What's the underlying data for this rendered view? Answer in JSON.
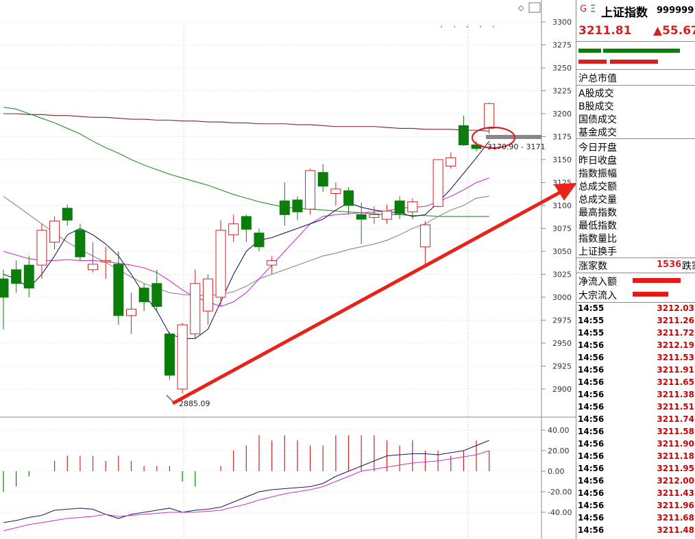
{
  "chart_data": [
    {
      "type": "candlestick",
      "y_ticks": [
        "3300",
        "3275",
        "3250",
        "3225",
        "3200",
        "3175",
        "3150",
        "3125",
        "3100",
        "3075",
        "3050",
        "3025",
        "3000",
        "2975",
        "2950",
        "2925",
        "2900"
      ],
      "ylim": [
        2885,
        3305
      ],
      "annotations": {
        "low_label": "2885.09",
        "range_label": "3170.90 - 3171",
        "max_marker": ". . . . ."
      },
      "candles": [
        {
          "o": 3020,
          "c": 3000,
          "h": 3030,
          "l": 2965
        },
        {
          "o": 3030,
          "c": 3015,
          "h": 3040,
          "l": 3005
        },
        {
          "o": 3035,
          "c": 3010,
          "h": 3045,
          "l": 3000
        },
        {
          "o": 3035,
          "c": 3073,
          "h": 3080,
          "l": 3020
        },
        {
          "o": 3060,
          "c": 3083,
          "h": 3088,
          "l": 3052
        },
        {
          "o": 3097,
          "c": 3084,
          "h": 3101,
          "l": 3078
        },
        {
          "o": 3073,
          "c": 3044,
          "h": 3080,
          "l": 3040
        },
        {
          "o": 3030,
          "c": 3036,
          "h": 3060,
          "l": 3027
        },
        {
          "o": 3040,
          "c": 3040,
          "h": 3055,
          "l": 3020
        },
        {
          "o": 3036,
          "c": 2980,
          "h": 3050,
          "l": 2970
        },
        {
          "o": 2980,
          "c": 2987,
          "h": 3005,
          "l": 2960
        },
        {
          "o": 3010,
          "c": 2995,
          "h": 3015,
          "l": 2985
        },
        {
          "o": 3015,
          "c": 2990,
          "h": 3030,
          "l": 2985
        },
        {
          "o": 2960,
          "c": 2915,
          "h": 2962,
          "l": 2910
        },
        {
          "o": 2900,
          "c": 2970,
          "h": 2972,
          "l": 2895
        },
        {
          "o": 2960,
          "c": 3015,
          "h": 3030,
          "l": 2955
        },
        {
          "o": 2985,
          "c": 3020,
          "h": 3025,
          "l": 2970
        },
        {
          "o": 3000,
          "c": 3073,
          "h": 3084,
          "l": 2990
        },
        {
          "o": 3068,
          "c": 3080,
          "h": 3090,
          "l": 3060
        },
        {
          "o": 3088,
          "c": 3074,
          "h": 3090,
          "l": 3060
        },
        {
          "o": 3070,
          "c": 3055,
          "h": 3075,
          "l": 3050
        },
        {
          "o": 3035,
          "c": 3040,
          "h": 3045,
          "l": 3025
        },
        {
          "o": 3105,
          "c": 3090,
          "h": 3125,
          "l": 3078
        },
        {
          "o": 3106,
          "c": 3093,
          "h": 3110,
          "l": 3084
        },
        {
          "o": 3096,
          "c": 3138,
          "h": 3140,
          "l": 3090
        },
        {
          "o": 3136,
          "c": 3121,
          "h": 3145,
          "l": 3115
        },
        {
          "o": 3113,
          "c": 3118,
          "h": 3125,
          "l": 3100
        },
        {
          "o": 3116,
          "c": 3100,
          "h": 3120,
          "l": 3090
        },
        {
          "o": 3090,
          "c": 3085,
          "h": 3103,
          "l": 3058
        },
        {
          "o": 3087,
          "c": 3090,
          "h": 3099,
          "l": 3080
        },
        {
          "o": 3085,
          "c": 3094,
          "h": 3101,
          "l": 3080
        },
        {
          "o": 3105,
          "c": 3091,
          "h": 3110,
          "l": 3085
        },
        {
          "o": 3093,
          "c": 3104,
          "h": 3108,
          "l": 3085
        },
        {
          "o": 3055,
          "c": 3079,
          "h": 3083,
          "l": 3035
        },
        {
          "o": 3099,
          "c": 3150,
          "h": 3150,
          "l": 3098
        },
        {
          "o": 3143,
          "c": 3152,
          "h": 3158,
          "l": 3140
        },
        {
          "o": 3187,
          "c": 3166,
          "h": 3198,
          "l": 3165
        },
        {
          "o": 3166,
          "c": 3162,
          "h": 3170,
          "l": 3159
        },
        {
          "o": 3184,
          "c": 3211,
          "h": 3212,
          "l": 3178
        }
      ],
      "ma_green": [
        3207,
        3205,
        3200,
        3195,
        3190,
        3184,
        3178,
        3170,
        3163,
        3157,
        3150,
        3144,
        3139,
        3134,
        3130,
        3126,
        3122,
        3117,
        3112,
        3108,
        3104,
        3101,
        3098,
        3097,
        3096,
        3095,
        3094,
        3093,
        3092,
        3091,
        3090,
        3090,
        3089,
        3089,
        3088,
        3088,
        3088,
        3088,
        3088
      ],
      "ma_darkred": [
        3200,
        3200,
        3199,
        3199,
        3198,
        3198,
        3197,
        3196,
        3196,
        3195,
        3194,
        3194,
        3193,
        3193,
        3192,
        3192,
        3191,
        3191,
        3190,
        3190,
        3189,
        3189,
        3189,
        3188,
        3188,
        3187,
        3186,
        3186,
        3186,
        3186,
        3185,
        3184,
        3184,
        3183,
        3183,
        3183,
        3182,
        3182,
        3181
      ],
      "ma_gray": [
        3110,
        3100,
        3090,
        3080,
        3070,
        3060,
        3052,
        3045,
        3038,
        3030,
        3022,
        3015,
        3010,
        3005,
        3003,
        3002,
        3002,
        3003,
        3006,
        3012,
        3020,
        3025,
        3030,
        3035,
        3040,
        3045,
        3048,
        3052,
        3055,
        3058,
        3062,
        3068,
        3075,
        3080,
        3088,
        3095,
        3100,
        3108,
        3110
      ],
      "ma_magenta": [
        3050,
        3046,
        3042,
        3040,
        3040,
        3041,
        3040,
        3040,
        3039,
        3037,
        3035,
        3032,
        3027,
        3018,
        3008,
        3000,
        2995,
        2990,
        2995,
        3005,
        3020,
        3035,
        3050,
        3065,
        3080,
        3088,
        3090,
        3091,
        3092,
        3093,
        3094,
        3097,
        3098,
        3099,
        3104,
        3110,
        3117,
        3125,
        3130
      ],
      "ma_navy": [
        3025,
        3020,
        3010,
        3025,
        3045,
        3068,
        3075,
        3068,
        3058,
        3045,
        3025,
        3003,
        2985,
        2960,
        2955,
        2955,
        2965,
        2995,
        3025,
        3050,
        3062,
        3065,
        3070,
        3075,
        3080,
        3085,
        3095,
        3103,
        3098,
        3095,
        3093,
        3092,
        3088,
        3090,
        3103,
        3118,
        3135,
        3152,
        3170
      ]
    },
    {
      "type": "bar",
      "y_ticks": [
        "40.00",
        "20.00",
        "0.00",
        "-20.00",
        "-40.00"
      ],
      "ylim": [
        -55,
        45
      ],
      "bars": [
        -20,
        -15,
        -5,
        0,
        10,
        15,
        15,
        15,
        10,
        15,
        10,
        5,
        5,
        5,
        -10,
        -15,
        0,
        5,
        20,
        25,
        35,
        30,
        35,
        30,
        25,
        25,
        35,
        35,
        35,
        35,
        30,
        25,
        30,
        20,
        20,
        15,
        20,
        30,
        20
      ],
      "line_navy": [
        -50,
        -48,
        -45,
        -43,
        -38,
        -37,
        -36,
        -37,
        -42,
        -46,
        -42,
        -40,
        -38,
        -36,
        -40,
        -38,
        -37,
        -35,
        -30,
        -25,
        -20,
        -18,
        -17,
        -16,
        -15,
        -12,
        -5,
        0,
        5,
        10,
        15,
        16,
        17,
        17,
        16,
        18,
        20,
        25,
        30
      ],
      "line_magenta": [
        -58,
        -55,
        -52,
        -50,
        -48,
        -46,
        -45,
        -44,
        -42,
        -44,
        -43,
        -42,
        -41,
        -40,
        -40,
        -40,
        -39,
        -38,
        -35,
        -32,
        -28,
        -25,
        -22,
        -20,
        -18,
        -15,
        -10,
        -5,
        0,
        2,
        4,
        6,
        8,
        9,
        10,
        12,
        14,
        16,
        20
      ]
    }
  ],
  "sidebar": {
    "letter_g": "G",
    "letter_e": "Ξ",
    "title": "上证指数",
    "code": "999999",
    "price": "3211.81",
    "change": "▲55.67",
    "labels": [
      "沪总市值",
      "A股成交",
      "B股成交",
      "国债成交",
      "基金成交",
      "今日开盘",
      "昨日收盘",
      "指数振幅",
      "总成交额",
      "总成交量",
      "最高指数",
      "最低指数",
      "指数量比",
      "上证换手"
    ],
    "zhang_label": "涨家数",
    "zhang_value": "1536",
    "die_label": "跌家",
    "flow_labels": [
      "净流入额",
      "大宗流入"
    ],
    "ticks": [
      {
        "time": "14:55",
        "price": "3212.03"
      },
      {
        "time": "14:55",
        "price": "3211.26"
      },
      {
        "time": "14:55",
        "price": "3211.72"
      },
      {
        "time": "14:56",
        "price": "3212.19"
      },
      {
        "time": "14:56",
        "price": "3211.53"
      },
      {
        "time": "14:56",
        "price": "3211.91"
      },
      {
        "time": "14:56",
        "price": "3211.65"
      },
      {
        "time": "14:56",
        "price": "3211.38"
      },
      {
        "time": "14:56",
        "price": "3211.51"
      },
      {
        "time": "14:56",
        "price": "3211.74"
      },
      {
        "time": "14:56",
        "price": "3211.58"
      },
      {
        "time": "14:56",
        "price": "3211.90"
      },
      {
        "time": "14:56",
        "price": "3211.18"
      },
      {
        "time": "14:56",
        "price": "3211.95"
      },
      {
        "time": "14:56",
        "price": "3212.00"
      },
      {
        "time": "14:56",
        "price": "3211.43"
      },
      {
        "time": "14:56",
        "price": "3211.96"
      },
      {
        "time": "14:56",
        "price": "3211.68"
      },
      {
        "time": "14:56",
        "price": "3211.48"
      }
    ]
  },
  "colors": {
    "up": "#d42020",
    "down": "#0a7d0a",
    "arrow": "#e8231a",
    "navy": "#1a1a60",
    "magenta": "#d030d0",
    "gray": "#888888",
    "green": "#2a8a2a",
    "darkred": "#7a2030"
  }
}
